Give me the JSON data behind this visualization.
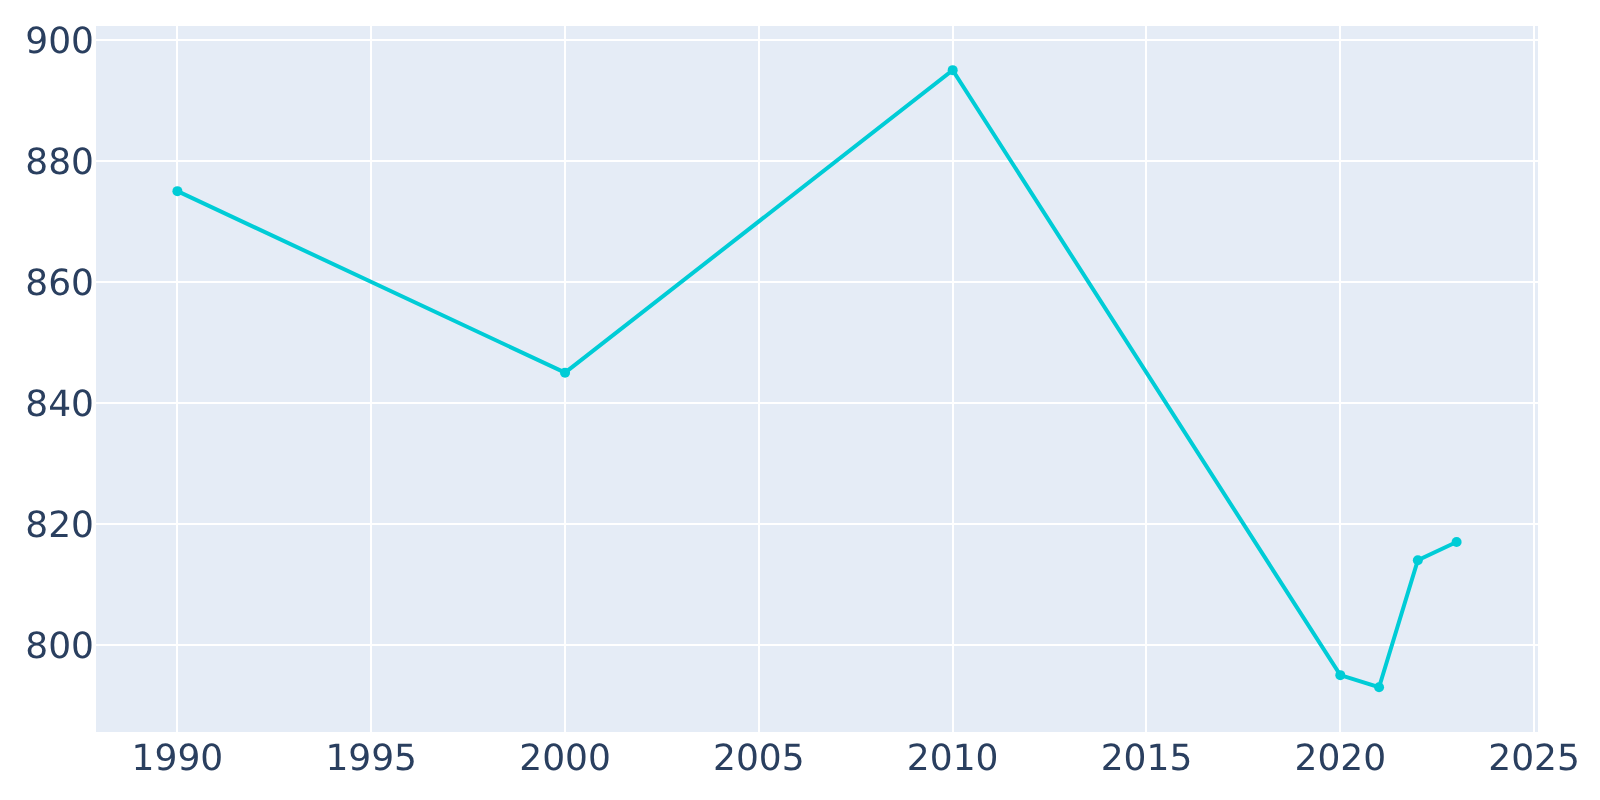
{
  "chart_data": {
    "type": "line",
    "x": [
      1990,
      2000,
      2010,
      2020,
      2021,
      2022,
      2023
    ],
    "series": [
      {
        "color": "#00ccd6",
        "values": [
          875,
          845,
          895,
          795,
          793,
          814,
          817
        ]
      }
    ],
    "xlim": [
      1987.9,
      2025.1
    ],
    "xticks": [
      1990,
      1995,
      2000,
      2005,
      2010,
      2015,
      2020,
      2025
    ],
    "ylim": [
      785.6,
      902.3
    ],
    "yticks": [
      800,
      820,
      840,
      860,
      880,
      900
    ],
    "grid": true,
    "marker": "circle",
    "line_style": "solid",
    "legend": false
  }
}
